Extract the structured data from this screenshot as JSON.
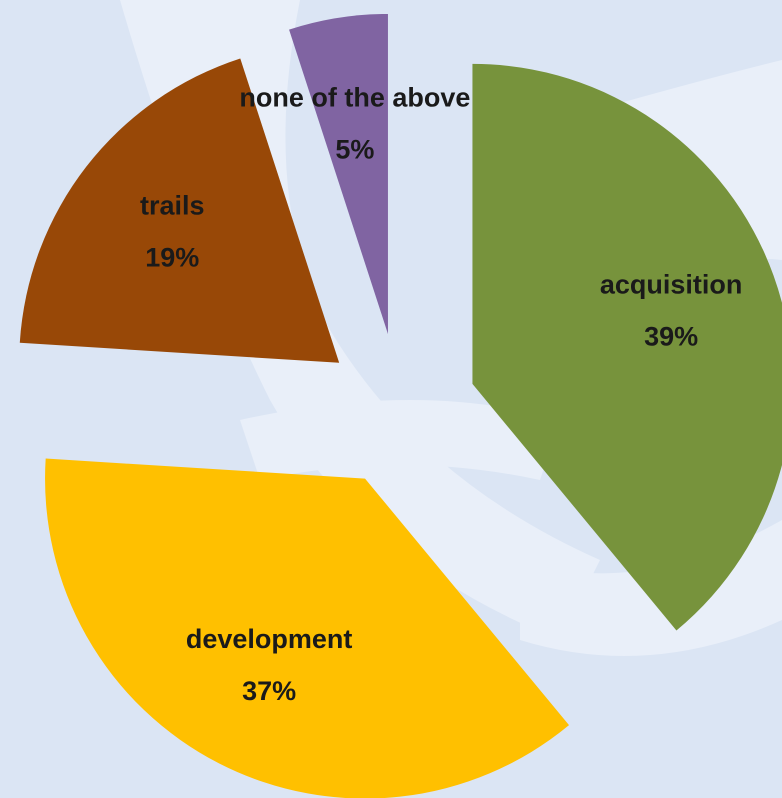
{
  "chart_data": {
    "type": "pie",
    "categories": [
      "acquisition",
      "development",
      "trails",
      "none of the above"
    ],
    "values": [
      39,
      37,
      19,
      5
    ],
    "value_labels": [
      "39%",
      "37%",
      "19%",
      "5%"
    ],
    "colors": [
      "#77933c",
      "#ffc000",
      "#984807",
      "#8064a2"
    ],
    "exploded": true
  }
}
